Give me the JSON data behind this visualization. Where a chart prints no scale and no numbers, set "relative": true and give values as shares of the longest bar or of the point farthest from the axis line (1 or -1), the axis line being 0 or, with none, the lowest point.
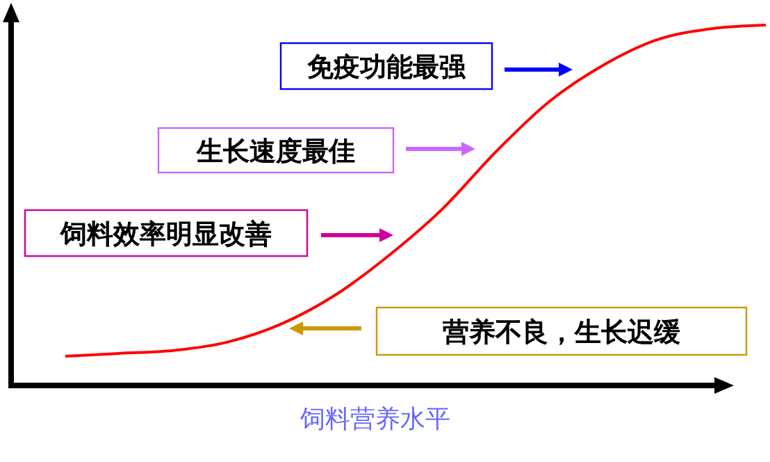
{
  "chart_data": {
    "type": "line",
    "relative": true,
    "xlabel": "饲料营养水平",
    "categories": [
      null,
      null,
      null,
      null,
      null,
      null,
      null,
      null,
      null,
      null,
      null,
      null,
      null,
      null
    ],
    "series": [
      {
        "color": "#ff0000",
        "values": [
          0.081,
          0.089,
          0.097,
          0.12,
          0.17,
          0.25,
          0.36,
          0.49,
          0.65,
          0.79,
          0.89,
          0.96,
          0.99,
          1
        ]
      }
    ],
    "annotations": [
      "免疫功能最强",
      "生长速度最佳",
      "饲料效率明显改善",
      "营养不良，生长迟缓"
    ],
    "marker": "none",
    "line_style": "solid"
  }
}
